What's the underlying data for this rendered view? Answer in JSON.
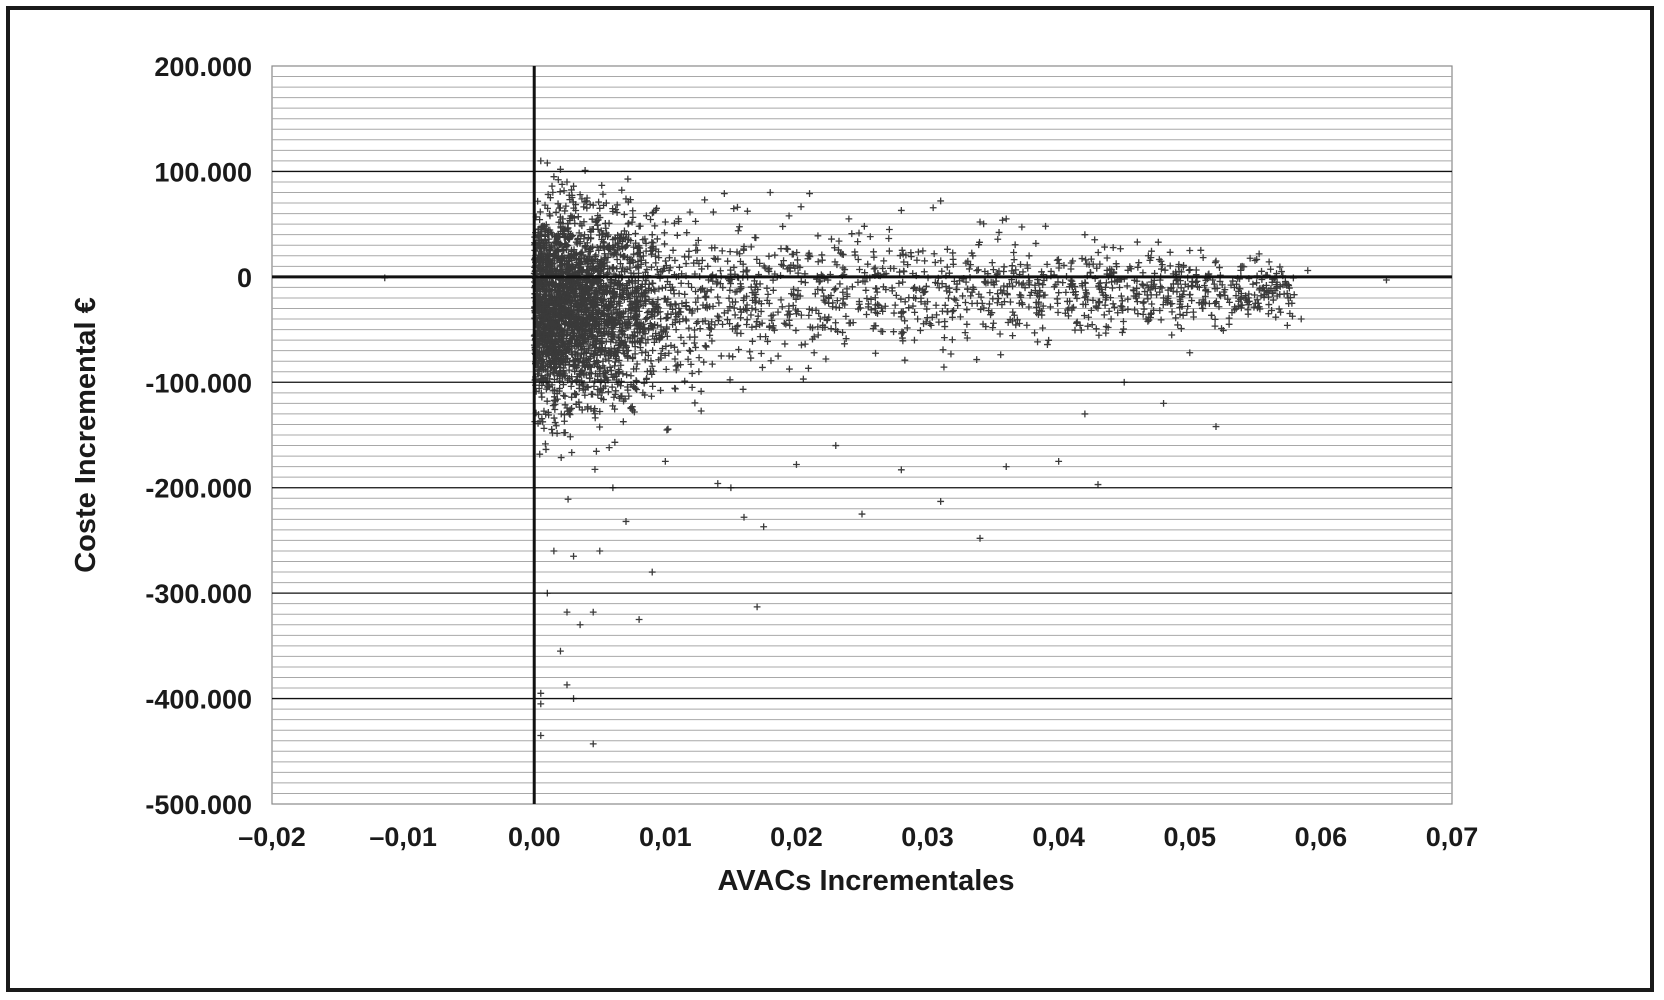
{
  "chart_data": {
    "type": "scatter",
    "xlabel": "AVACs Incrementales",
    "ylabel": "Coste Incremental €",
    "xlim": [
      -0.02,
      0.07
    ],
    "ylim": [
      -500000,
      200000
    ],
    "x_ticks": [
      -0.02,
      -0.01,
      0.0,
      0.01,
      0.02,
      0.03,
      0.04,
      0.05,
      0.06,
      0.07
    ],
    "x_tick_labels": [
      "–0,02",
      "–0,01",
      "0,00",
      "0,01",
      "0,02",
      "0,03",
      "0,04",
      "0,05",
      "0,06",
      "0,07"
    ],
    "y_ticks": [
      200000,
      100000,
      0,
      -100000,
      -200000,
      -300000,
      -400000,
      -500000
    ],
    "y_tick_labels": [
      "200.000",
      "100.000",
      "0",
      "-100.000",
      "-200.000",
      "-300.000",
      "-400.000",
      "-500.000"
    ],
    "minor_gridline_step": 10000,
    "grid": true,
    "marker": "+",
    "marker_color": "#3a3a3a",
    "series": [
      {
        "points": [
          [
            -0.0114,
            -1000
          ],
          [
            0.0005,
            110000
          ],
          [
            0.001,
            108000
          ],
          [
            0.0015,
            95000
          ],
          [
            0.002,
            102000
          ],
          [
            0.0025,
            90000
          ],
          [
            0.003,
            86000
          ],
          [
            0.0035,
            78000
          ],
          [
            0.004,
            72000
          ],
          [
            0.0045,
            68000
          ],
          [
            0.005,
            65000
          ],
          [
            0.0055,
            70000
          ],
          [
            0.006,
            62000
          ],
          [
            0.007,
            74000
          ],
          [
            0.008,
            48000
          ],
          [
            0.009,
            40000
          ],
          [
            0.01,
            52000
          ],
          [
            0.011,
            55000
          ],
          [
            0.013,
            73000
          ],
          [
            0.0145,
            79000
          ],
          [
            0.0155,
            66000
          ],
          [
            0.018,
            80000
          ],
          [
            0.021,
            79000
          ],
          [
            0.024,
            55000
          ],
          [
            0.028,
            63000
          ],
          [
            0.031,
            72000
          ],
          [
            0.034,
            52000
          ],
          [
            0.036,
            55000
          ],
          [
            0.039,
            48000
          ],
          [
            0.042,
            40000
          ],
          [
            0.046,
            33000
          ],
          [
            0.05,
            25000
          ],
          [
            0.052,
            15000
          ],
          [
            0.054,
            10000
          ],
          [
            0.057,
            5000
          ],
          [
            0.059,
            6000
          ],
          [
            0.065,
            -3000
          ],
          [
            0.012,
            -10000
          ],
          [
            0.016,
            -20000
          ],
          [
            0.02,
            -35000
          ],
          [
            0.023,
            -50000
          ],
          [
            0.026,
            -30000
          ],
          [
            0.029,
            -60000
          ],
          [
            0.033,
            -45000
          ],
          [
            0.037,
            -25000
          ],
          [
            0.04,
            -15000
          ],
          [
            0.044,
            -40000
          ],
          [
            0.048,
            -20000
          ],
          [
            0.051,
            -30000
          ],
          [
            0.053,
            -45000
          ],
          [
            0.055,
            -25000
          ],
          [
            0.056,
            -35000
          ],
          [
            0.0575,
            -20000
          ],
          [
            0.0585,
            -40000
          ],
          [
            0.05,
            -72000
          ],
          [
            0.048,
            -120000
          ],
          [
            0.052,
            -142000
          ],
          [
            0.045,
            -100000
          ],
          [
            0.042,
            -130000
          ],
          [
            0.04,
            -175000
          ],
          [
            0.043,
            -197000
          ],
          [
            0.036,
            -180000
          ],
          [
            0.034,
            -248000
          ],
          [
            0.031,
            -213000
          ],
          [
            0.028,
            -183000
          ],
          [
            0.025,
            -225000
          ],
          [
            0.023,
            -160000
          ],
          [
            0.02,
            -178000
          ],
          [
            0.0175,
            -237000
          ],
          [
            0.016,
            -228000
          ],
          [
            0.017,
            -313000
          ],
          [
            0.015,
            -200000
          ],
          [
            0.014,
            -196000
          ],
          [
            0.01,
            -175000
          ],
          [
            0.009,
            -280000
          ],
          [
            0.008,
            -325000
          ],
          [
            0.006,
            -200000
          ],
          [
            0.007,
            -232000
          ],
          [
            0.0045,
            -318000
          ],
          [
            0.0035,
            -330000
          ],
          [
            0.0025,
            -318000
          ],
          [
            0.002,
            -355000
          ],
          [
            0.0025,
            -387000
          ],
          [
            0.0005,
            -395000
          ],
          [
            0.0005,
            -405000
          ],
          [
            0.0005,
            -435000
          ],
          [
            0.0045,
            -443000
          ],
          [
            0.003,
            -400000
          ],
          [
            0.001,
            -300000
          ],
          [
            0.0015,
            -260000
          ],
          [
            0.003,
            -265000
          ],
          [
            0.005,
            -260000
          ]
        ],
        "density_region": "Dense cluster concentrated at AVACs 0.000 to 0.010 with Coste Incremental from -300.000 to 110.000; scattered cloud extending to AVACs 0.065 with most values between -100.000 and 50.000"
      }
    ]
  }
}
